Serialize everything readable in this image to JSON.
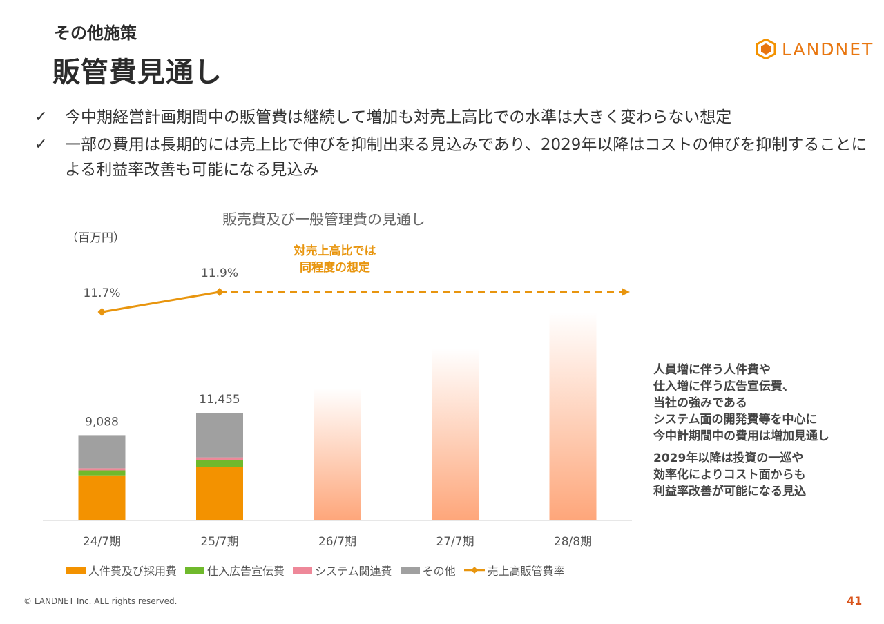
{
  "header": {
    "subtitle": "その他施策",
    "title": "販管費見通し",
    "logo_text": "LANDNET"
  },
  "bullets": [
    {
      "icon": "✓",
      "text": "今中期経営計画期間中の販管費は継続して増加も対売上高比での水準は大きく変わらない想定"
    },
    {
      "icon": "✓",
      "text": "一部の費用は長期的には売上比で伸びを抑制出来る見込みであり、2029年以降はコストの伸びを抑制することによる利益率改善も可能になる見込み"
    }
  ],
  "chart_data": {
    "type": "bar",
    "title": "販売費及び一般管理費の見通し",
    "unit": "（百万円）",
    "categories": [
      "24/7期",
      "25/7期",
      "26/7期",
      "27/7期",
      "28/8期"
    ],
    "series": [
      {
        "name": "人件費及び採用費",
        "color": "#f39200",
        "values": [
          4800,
          5700,
          null,
          null,
          null
        ]
      },
      {
        "name": "仕入広告宣伝費",
        "color": "#6fb92c",
        "values": [
          530,
          720,
          null,
          null,
          null
        ]
      },
      {
        "name": "システム関連費",
        "color": "#ee8899",
        "values": [
          230,
          300,
          null,
          null,
          null
        ]
      },
      {
        "name": "その他",
        "color": "#a0a0a0",
        "values": [
          3528,
          4735,
          null,
          null,
          null
        ]
      }
    ],
    "totals": [
      9088,
      11455,
      null,
      null,
      null
    ],
    "total_labels": [
      "9,088",
      "11,455",
      "",
      "",
      ""
    ],
    "projection_color": "#fea67a",
    "projection_relative_height": [
      null,
      null,
      0.77,
      1.0,
      1.21
    ],
    "ratio_series": {
      "name": "売上高販管費率",
      "color": "#e8950e",
      "values": [
        11.7,
        11.9,
        null,
        null,
        null
      ],
      "labels": [
        "11.7%",
        "11.9%",
        "",
        "",
        ""
      ],
      "projection": "dashed-flat"
    },
    "ratio_note": "対売上高比では同程度の想定",
    "ratio_note_lines": [
      "対売上高比では",
      "同程度の想定"
    ]
  },
  "side_note": {
    "paragraph1_lines": [
      "人員増に伴う人件費や",
      "仕入増に伴う広告宣伝費、",
      "当社の強みである",
      "システム面の開発費等を中心に",
      "今中計期間中の費用は増加見通し"
    ],
    "paragraph2_lines": [
      "2029年以降は投資の一巡や",
      "効率化によりコスト面からも",
      "利益率改善が可能になる見込"
    ]
  },
  "footer": {
    "copyright": "© LANDNET Inc. ALL rights reserved.",
    "page_number": "41"
  },
  "colors": {
    "accent": "#e8760f",
    "page_number": "#d9541b"
  }
}
